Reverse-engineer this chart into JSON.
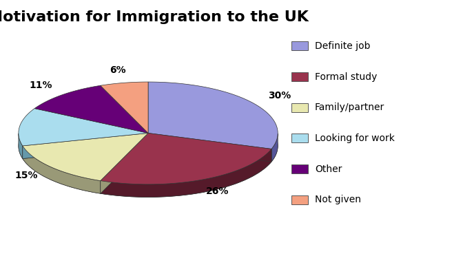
{
  "title": "Motivation for Immigration to the UK",
  "labels": [
    "Definite job",
    "Formal study",
    "Family/partner",
    "Looking for work",
    "Other",
    "Not given"
  ],
  "values": [
    30,
    26,
    15,
    12,
    11,
    6
  ],
  "colors": [
    "#9999dd",
    "#99334d",
    "#e8e8b0",
    "#aaddee",
    "#660077",
    "#f4a080"
  ],
  "dark_colors": [
    "#555599",
    "#551a2a",
    "#999977",
    "#6699aa",
    "#330044",
    "#aa6655"
  ],
  "startangle": 90,
  "background_color": "#ffffff",
  "title_fontsize": 16,
  "title_fontweight": "bold"
}
